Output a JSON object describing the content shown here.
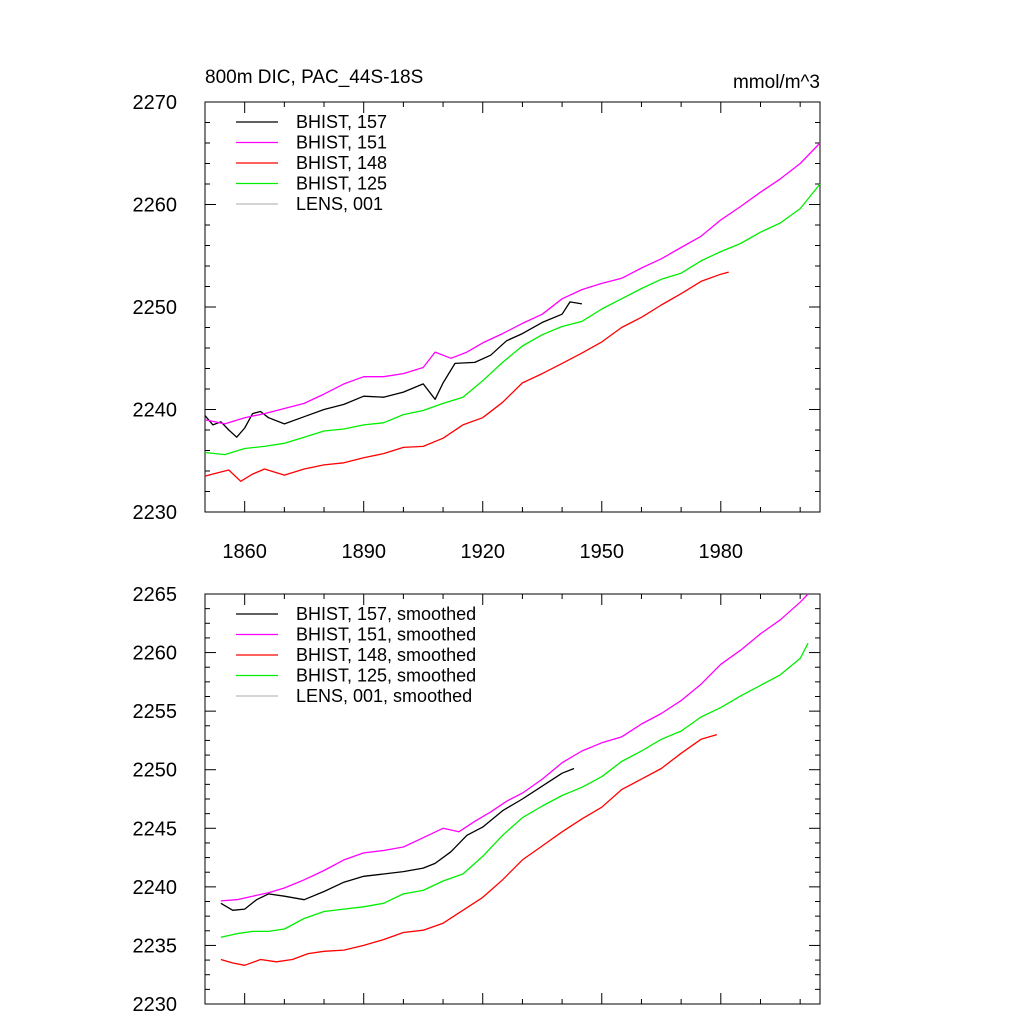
{
  "chart_data": [
    {
      "type": "line",
      "title": "800m DIC, PAC_44S-18S",
      "units": "mmol/m^3",
      "x_range": [
        1850,
        2005
      ],
      "ylim": [
        2230,
        2270
      ],
      "xticks": [
        "1860",
        "1890",
        "1920",
        "1950",
        "1980"
      ],
      "yticks": [
        "2230",
        "2240",
        "2250",
        "2260",
        "2270"
      ],
      "series": [
        {
          "name": "BHIST, 157",
          "color": "#000000",
          "x": [
            1850,
            1852,
            1854,
            1856,
            1858,
            1860,
            1862,
            1864,
            1866,
            1870,
            1875,
            1880,
            1885,
            1890,
            1895,
            1900,
            1905,
            1908,
            1910,
            1913,
            1918,
            1922,
            1926,
            1930,
            1935,
            1940,
            1942,
            1945
          ],
          "values": [
            2239.4,
            2238.5,
            2238.8,
            2238.0,
            2237.3,
            2238.2,
            2239.6,
            2239.8,
            2239.2,
            2238.6,
            2239.3,
            2240.0,
            2240.5,
            2241.3,
            2241.2,
            2241.7,
            2242.5,
            2241.0,
            2242.6,
            2244.5,
            2244.6,
            2245.3,
            2246.7,
            2247.4,
            2248.5,
            2249.3,
            2250.5,
            2250.3
          ]
        },
        {
          "name": "BHIST, 151",
          "color": "#ff00ff",
          "x": [
            1850,
            1855,
            1860,
            1865,
            1870,
            1875,
            1880,
            1885,
            1890,
            1895,
            1900,
            1905,
            1908,
            1912,
            1916,
            1920,
            1925,
            1930,
            1935,
            1940,
            1945,
            1950,
            1955,
            1960,
            1965,
            1970,
            1975,
            1980,
            1985,
            1990,
            1995,
            2000,
            2005
          ],
          "values": [
            2239.0,
            2238.6,
            2239.2,
            2239.6,
            2240.1,
            2240.6,
            2241.5,
            2242.5,
            2243.2,
            2243.2,
            2243.5,
            2244.1,
            2245.6,
            2245.0,
            2245.6,
            2246.5,
            2247.4,
            2248.4,
            2249.3,
            2250.8,
            2251.7,
            2252.3,
            2252.8,
            2253.8,
            2254.7,
            2255.8,
            2256.9,
            2258.5,
            2259.8,
            2261.2,
            2262.5,
            2264.0,
            2266.0
          ]
        },
        {
          "name": "BHIST, 148",
          "color": "#ff0000",
          "x": [
            1850,
            1853,
            1856,
            1859,
            1862,
            1865,
            1870,
            1875,
            1880,
            1885,
            1890,
            1895,
            1900,
            1905,
            1910,
            1915,
            1920,
            1925,
            1930,
            1935,
            1940,
            1945,
            1950,
            1955,
            1960,
            1965,
            1970,
            1975,
            1980,
            1982
          ],
          "values": [
            2233.5,
            2233.8,
            2234.1,
            2233.0,
            2233.7,
            2234.2,
            2233.6,
            2234.2,
            2234.6,
            2234.8,
            2235.3,
            2235.7,
            2236.3,
            2236.4,
            2237.2,
            2238.5,
            2239.2,
            2240.7,
            2242.6,
            2243.5,
            2244.5,
            2245.5,
            2246.6,
            2248.0,
            2249.0,
            2250.2,
            2251.3,
            2252.5,
            2253.2,
            2253.4
          ]
        },
        {
          "name": "BHIST, 125",
          "color": "#00ee00",
          "x": [
            1850,
            1855,
            1860,
            1865,
            1870,
            1875,
            1880,
            1885,
            1890,
            1895,
            1900,
            1905,
            1910,
            1915,
            1920,
            1925,
            1930,
            1935,
            1940,
            1945,
            1950,
            1955,
            1960,
            1965,
            1970,
            1975,
            1980,
            1985,
            1990,
            1995,
            2000,
            2005
          ],
          "values": [
            2235.8,
            2235.6,
            2236.2,
            2236.4,
            2236.7,
            2237.3,
            2237.9,
            2238.1,
            2238.5,
            2238.7,
            2239.5,
            2239.9,
            2240.6,
            2241.2,
            2242.8,
            2244.6,
            2246.2,
            2247.3,
            2248.1,
            2248.6,
            2249.8,
            2250.8,
            2251.8,
            2252.7,
            2253.3,
            2254.5,
            2255.4,
            2256.2,
            2257.3,
            2258.2,
            2259.6,
            2262.0
          ]
        },
        {
          "name": "LENS, 001",
          "color": "#bbbbbb",
          "x": [],
          "values": []
        }
      ]
    },
    {
      "type": "line",
      "title": "",
      "x_range": [
        1850,
        2005
      ],
      "ylim": [
        2230,
        2265
      ],
      "xticks": [],
      "yticks": [
        "2230",
        "2235",
        "2240",
        "2245",
        "2250",
        "2255",
        "2260",
        "2265"
      ],
      "series": [
        {
          "name": "BHIST, 157, smoothed",
          "color": "#000000",
          "x": [
            1854,
            1857,
            1860,
            1863,
            1866,
            1870,
            1875,
            1880,
            1885,
            1890,
            1895,
            1900,
            1905,
            1908,
            1912,
            1916,
            1920,
            1925,
            1930,
            1935,
            1940,
            1943
          ],
          "values": [
            2238.6,
            2238.0,
            2238.1,
            2238.9,
            2239.4,
            2239.2,
            2238.9,
            2239.6,
            2240.4,
            2240.9,
            2241.1,
            2241.3,
            2241.6,
            2242.0,
            2243.0,
            2244.4,
            2245.1,
            2246.5,
            2247.5,
            2248.6,
            2249.7,
            2250.1
          ]
        },
        {
          "name": "BHIST, 151, smoothed",
          "color": "#ff00ff",
          "x": [
            1854,
            1858,
            1862,
            1866,
            1870,
            1875,
            1880,
            1885,
            1890,
            1895,
            1900,
            1905,
            1910,
            1914,
            1918,
            1922,
            1926,
            1930,
            1935,
            1940,
            1945,
            1950,
            1955,
            1960,
            1965,
            1970,
            1975,
            1980,
            1985,
            1990,
            1995,
            2000,
            2002
          ],
          "values": [
            2238.8,
            2238.9,
            2239.2,
            2239.5,
            2239.9,
            2240.6,
            2241.4,
            2242.3,
            2242.9,
            2243.1,
            2243.4,
            2244.2,
            2245.0,
            2244.7,
            2245.6,
            2246.4,
            2247.3,
            2248.0,
            2249.2,
            2250.6,
            2251.6,
            2252.3,
            2252.8,
            2253.9,
            2254.8,
            2255.9,
            2257.3,
            2259.0,
            2260.2,
            2261.6,
            2262.8,
            2264.3,
            2265.0
          ]
        },
        {
          "name": "BHIST, 148, smoothed",
          "color": "#ff0000",
          "x": [
            1854,
            1857,
            1860,
            1864,
            1868,
            1872,
            1876,
            1880,
            1885,
            1890,
            1895,
            1900,
            1905,
            1910,
            1915,
            1920,
            1925,
            1930,
            1935,
            1940,
            1945,
            1950,
            1955,
            1960,
            1965,
            1970,
            1975,
            1979
          ],
          "values": [
            2233.8,
            2233.5,
            2233.3,
            2233.8,
            2233.6,
            2233.8,
            2234.3,
            2234.5,
            2234.6,
            2235.0,
            2235.5,
            2236.1,
            2236.3,
            2236.9,
            2238.0,
            2239.1,
            2240.6,
            2242.3,
            2243.5,
            2244.7,
            2245.8,
            2246.8,
            2248.3,
            2249.2,
            2250.1,
            2251.4,
            2252.6,
            2253.0
          ]
        },
        {
          "name": "BHIST, 125, smoothed",
          "color": "#00ee00",
          "x": [
            1854,
            1858,
            1862,
            1866,
            1870,
            1875,
            1880,
            1885,
            1890,
            1895,
            1900,
            1905,
            1910,
            1915,
            1920,
            1925,
            1930,
            1935,
            1940,
            1945,
            1950,
            1955,
            1960,
            1965,
            1970,
            1975,
            1980,
            1985,
            1990,
            1995,
            2000,
            2002
          ],
          "values": [
            2235.7,
            2236.0,
            2236.2,
            2236.2,
            2236.4,
            2237.3,
            2237.9,
            2238.1,
            2238.3,
            2238.6,
            2239.4,
            2239.7,
            2240.5,
            2241.1,
            2242.6,
            2244.4,
            2245.9,
            2246.9,
            2247.8,
            2248.5,
            2249.4,
            2250.7,
            2251.6,
            2252.6,
            2253.3,
            2254.5,
            2255.3,
            2256.3,
            2257.2,
            2258.1,
            2259.5,
            2260.8
          ]
        },
        {
          "name": "LENS, 001, smoothed",
          "color": "#bbbbbb",
          "x": [],
          "values": []
        }
      ]
    }
  ]
}
